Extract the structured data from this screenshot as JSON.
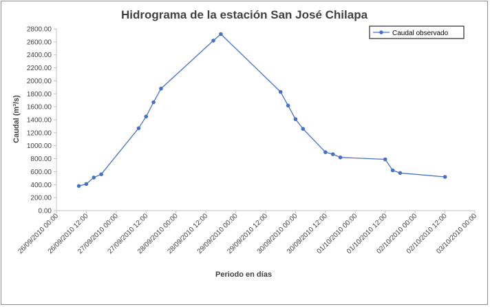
{
  "chart_data": {
    "type": "line",
    "title": "Hidrograma de la estación San José Chilapa",
    "xlabel": "Periodo en días",
    "ylabel": "Caudal (m³/s)",
    "ylim": [
      0,
      2800
    ],
    "yticks": [
      0,
      200,
      400,
      600,
      800,
      1000,
      1200,
      1400,
      1600,
      1800,
      2000,
      2200,
      2400,
      2600,
      2800
    ],
    "ytick_labels": [
      "0.00",
      "200.00",
      "400.00",
      "600.00",
      "800.00",
      "1000.00",
      "1200.00",
      "1400.00",
      "1600.00",
      "1800.00",
      "2000.00",
      "2200.00",
      "2400.00",
      "2600.00",
      "2800.00"
    ],
    "xlim": [
      "26/09/2010 00:00",
      "03/10/2010 00:00"
    ],
    "xtick_labels": [
      "26/09/2010 00:00",
      "26/09/2010 12:00",
      "27/09/2010 00:00",
      "27/09/2010 12:00",
      "28/09/2010 00:00",
      "28/09/2010 12:00",
      "29/09/2010 00:00",
      "29/09/2010 12:00",
      "30/09/2010 00:00",
      "30/09/2010 12:00",
      "01/10/2010 00:00",
      "01/10/2010 12:00",
      "02/10/2010 00:00",
      "02/10/2010 12:00",
      "03/10/2010 00:00"
    ],
    "grid": false,
    "legend": "top-right",
    "series": [
      {
        "name": "Caudal observado",
        "color": "#4472c4",
        "x": [
          "26/09/2010 09:00",
          "26/09/2010 12:00",
          "26/09/2010 15:00",
          "26/09/2010 18:00",
          "27/09/2010 09:00",
          "27/09/2010 12:00",
          "27/09/2010 15:00",
          "27/09/2010 18:00",
          "28/09/2010 15:00",
          "28/09/2010 18:00",
          "29/09/2010 18:00",
          "29/09/2010 21:00",
          "30/09/2010 00:00",
          "30/09/2010 03:00",
          "30/09/2010 12:00",
          "30/09/2010 15:00",
          "30/09/2010 18:00",
          "01/10/2010 12:00",
          "01/10/2010 15:00",
          "01/10/2010 18:00",
          "02/10/2010 12:00"
        ],
        "values": [
          380,
          410,
          510,
          560,
          1270,
          1450,
          1670,
          1880,
          2620,
          2720,
          1830,
          1620,
          1410,
          1260,
          900,
          870,
          820,
          790,
          620,
          580,
          520
        ]
      }
    ]
  }
}
